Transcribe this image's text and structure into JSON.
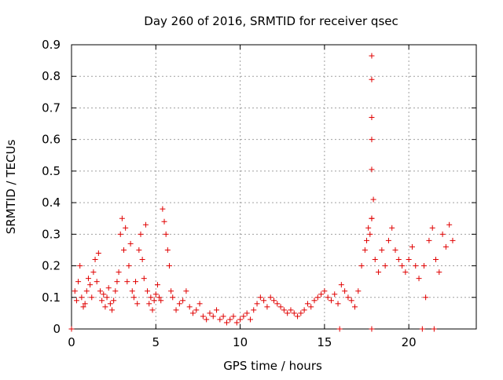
{
  "chart_data": {
    "type": "scatter",
    "title": "Day 260 of 2016, SRMTID for receiver qsec",
    "xlabel": "GPS time / hours",
    "ylabel": "SRMTID / TECUs",
    "xlim": [
      0,
      24
    ],
    "ylim": [
      0,
      0.9
    ],
    "x_ticks": [
      0,
      5,
      10,
      15,
      20
    ],
    "y_ticks": [
      0,
      0.1,
      0.2,
      0.3,
      0.4,
      0.5,
      0.6,
      0.7,
      0.8,
      0.9
    ],
    "x_tick_labels": [
      "0",
      "5",
      "10",
      "15",
      "20"
    ],
    "y_tick_labels": [
      "0",
      "0.1",
      "0.2",
      "0.3",
      "0.4",
      "0.5",
      "0.6",
      "0.7",
      "0.8",
      "0.9"
    ],
    "grid": true,
    "marker": "+",
    "series_color": "#e00000",
    "series": [
      {
        "name": "SRMTID",
        "x": [
          0.0,
          0.2,
          0.3,
          0.4,
          0.5,
          0.6,
          0.7,
          0.8,
          0.9,
          1.0,
          1.1,
          1.2,
          1.3,
          1.4,
          1.5,
          1.6,
          1.7,
          1.8,
          1.9,
          2.0,
          2.1,
          2.2,
          2.3,
          2.4,
          2.5,
          2.6,
          2.7,
          2.8,
          2.9,
          3.0,
          3.1,
          3.2,
          3.3,
          3.4,
          3.5,
          3.6,
          3.7,
          3.8,
          3.9,
          4.0,
          4.1,
          4.2,
          4.3,
          4.4,
          4.5,
          4.6,
          4.7,
          4.8,
          4.9,
          5.0,
          5.1,
          5.2,
          5.3,
          5.4,
          5.5,
          5.6,
          5.7,
          5.8,
          5.9,
          6.0,
          6.2,
          6.4,
          6.6,
          6.8,
          7.0,
          7.2,
          7.4,
          7.6,
          7.8,
          8.0,
          8.2,
          8.4,
          8.6,
          8.8,
          9.0,
          9.2,
          9.4,
          9.6,
          9.8,
          10.0,
          10.2,
          10.4,
          10.6,
          10.8,
          11.0,
          11.2,
          11.4,
          11.6,
          11.8,
          12.0,
          12.2,
          12.4,
          12.6,
          12.8,
          13.0,
          13.2,
          13.4,
          13.6,
          13.8,
          14.0,
          14.2,
          14.4,
          14.6,
          14.8,
          15.0,
          15.2,
          15.4,
          15.6,
          15.8,
          15.9,
          16.0,
          16.2,
          16.4,
          16.6,
          16.8,
          17.0,
          17.2,
          17.4,
          17.5,
          17.6,
          17.7,
          17.8,
          17.9,
          18.0,
          18.2,
          18.4,
          18.6,
          18.8,
          19.0,
          19.2,
          19.4,
          19.6,
          19.8,
          20.0,
          20.2,
          20.4,
          20.6,
          20.8,
          20.9,
          21.0,
          21.2,
          21.4,
          21.5,
          21.6,
          21.8,
          22.0,
          22.2,
          22.4,
          22.6,
          17.8,
          17.8,
          17.8,
          17.8,
          17.8,
          17.8,
          17.8
        ],
        "y": [
          0.0,
          0.12,
          0.09,
          0.15,
          0.2,
          0.1,
          0.07,
          0.08,
          0.12,
          0.16,
          0.14,
          0.1,
          0.18,
          0.22,
          0.15,
          0.24,
          0.12,
          0.09,
          0.11,
          0.07,
          0.1,
          0.13,
          0.08,
          0.06,
          0.09,
          0.12,
          0.15,
          0.18,
          0.3,
          0.35,
          0.25,
          0.32,
          0.15,
          0.2,
          0.27,
          0.12,
          0.1,
          0.15,
          0.08,
          0.25,
          0.3,
          0.22,
          0.16,
          0.33,
          0.12,
          0.08,
          0.1,
          0.06,
          0.09,
          0.11,
          0.14,
          0.1,
          0.09,
          0.38,
          0.34,
          0.3,
          0.25,
          0.2,
          0.12,
          0.1,
          0.06,
          0.08,
          0.09,
          0.12,
          0.07,
          0.05,
          0.06,
          0.08,
          0.04,
          0.03,
          0.05,
          0.04,
          0.06,
          0.03,
          0.04,
          0.02,
          0.03,
          0.04,
          0.02,
          0.03,
          0.04,
          0.05,
          0.03,
          0.06,
          0.08,
          0.1,
          0.09,
          0.07,
          0.1,
          0.09,
          0.08,
          0.07,
          0.06,
          0.05,
          0.06,
          0.05,
          0.04,
          0.05,
          0.06,
          0.08,
          0.07,
          0.09,
          0.1,
          0.11,
          0.12,
          0.1,
          0.09,
          0.11,
          0.08,
          0.0,
          0.14,
          0.12,
          0.1,
          0.09,
          0.07,
          0.12,
          0.2,
          0.25,
          0.28,
          0.32,
          0.3,
          0.35,
          0.41,
          0.22,
          0.18,
          0.25,
          0.2,
          0.28,
          0.32,
          0.25,
          0.22,
          0.2,
          0.18,
          0.22,
          0.26,
          0.2,
          0.16,
          0.0,
          0.2,
          0.1,
          0.28,
          0.32,
          0.0,
          0.22,
          0.18,
          0.3,
          0.26,
          0.33,
          0.28,
          0.505,
          0.6,
          0.67,
          0.79,
          0.865,
          0.35,
          0.0
        ]
      }
    ]
  }
}
